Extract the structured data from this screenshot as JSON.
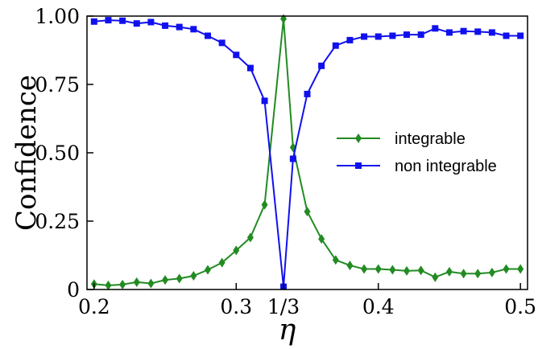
{
  "chart_data": {
    "type": "line",
    "xlabel": "η",
    "ylabel": "Confidence",
    "xlim": [
      0.195,
      0.505
    ],
    "ylim": [
      0,
      1.0
    ],
    "x_ticks": [
      {
        "value": 0.2,
        "label": "0.2"
      },
      {
        "value": 0.3,
        "label": "0.3"
      },
      {
        "value": 0.3333,
        "label": "1/3"
      },
      {
        "value": 0.4,
        "label": "0.4"
      },
      {
        "value": 0.5,
        "label": "0.5"
      }
    ],
    "y_ticks": [
      {
        "value": 0,
        "label": "0"
      },
      {
        "value": 0.25,
        "label": "0.25"
      },
      {
        "value": 0.5,
        "label": "0.50"
      },
      {
        "value": 0.75,
        "label": "0.75"
      },
      {
        "value": 1.0,
        "label": "1.00"
      }
    ],
    "grid": false,
    "legend_position": "right",
    "series": [
      {
        "name": "integrable",
        "color": "#228B22",
        "marker": "diamond",
        "x": [
          0.2,
          0.21,
          0.22,
          0.23,
          0.24,
          0.25,
          0.26,
          0.27,
          0.28,
          0.29,
          0.3,
          0.31,
          0.32,
          0.3333,
          0.34,
          0.35,
          0.36,
          0.37,
          0.38,
          0.39,
          0.4,
          0.41,
          0.42,
          0.43,
          0.44,
          0.45,
          0.46,
          0.47,
          0.48,
          0.49,
          0.5
        ],
        "y": [
          0.02,
          0.015,
          0.018,
          0.027,
          0.022,
          0.035,
          0.04,
          0.05,
          0.072,
          0.098,
          0.143,
          0.19,
          0.31,
          0.99,
          0.52,
          0.285,
          0.185,
          0.108,
          0.088,
          0.075,
          0.075,
          0.072,
          0.068,
          0.07,
          0.045,
          0.065,
          0.058,
          0.058,
          0.062,
          0.075,
          0.075
        ]
      },
      {
        "name": "non integrable",
        "color": "#1010EE",
        "marker": "square",
        "x": [
          0.2,
          0.21,
          0.22,
          0.23,
          0.24,
          0.25,
          0.26,
          0.27,
          0.28,
          0.29,
          0.3,
          0.31,
          0.32,
          0.3333,
          0.34,
          0.35,
          0.36,
          0.37,
          0.38,
          0.39,
          0.4,
          0.41,
          0.42,
          0.43,
          0.44,
          0.45,
          0.46,
          0.47,
          0.48,
          0.49,
          0.5
        ],
        "y": [
          0.98,
          0.985,
          0.983,
          0.973,
          0.978,
          0.965,
          0.96,
          0.952,
          0.928,
          0.902,
          0.858,
          0.81,
          0.69,
          0.01,
          0.478,
          0.715,
          0.818,
          0.892,
          0.912,
          0.925,
          0.925,
          0.928,
          0.932,
          0.932,
          0.955,
          0.94,
          0.945,
          0.943,
          0.94,
          0.928,
          0.928
        ]
      }
    ]
  }
}
